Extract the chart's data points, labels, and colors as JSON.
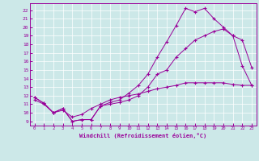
{
  "title": "",
  "xlabel": "Windchill (Refroidissement éolien,°C)",
  "ylabel": "",
  "bg_color": "#cce8e8",
  "line_color": "#990099",
  "xlim": [
    -0.5,
    23.5
  ],
  "ylim": [
    8.5,
    22.8
  ],
  "xticks": [
    0,
    1,
    2,
    3,
    4,
    5,
    6,
    7,
    8,
    9,
    10,
    11,
    12,
    13,
    14,
    15,
    16,
    17,
    18,
    19,
    20,
    21,
    22,
    23
  ],
  "yticks": [
    9,
    10,
    11,
    12,
    13,
    14,
    15,
    16,
    17,
    18,
    19,
    20,
    21,
    22
  ],
  "line1_x": [
    0,
    1,
    2,
    3,
    4,
    5,
    6,
    7,
    8,
    9,
    10,
    11,
    12,
    13,
    14,
    15,
    16,
    17,
    18,
    19,
    20,
    21,
    22,
    23
  ],
  "line1_y": [
    11.8,
    11.1,
    10.0,
    10.5,
    9.0,
    9.2,
    9.2,
    10.8,
    11.0,
    11.2,
    11.5,
    12.0,
    13.0,
    14.5,
    15.0,
    16.5,
    17.5,
    18.5,
    19.0,
    19.5,
    19.8,
    19.0,
    18.5,
    15.3
  ],
  "line2_x": [
    0,
    1,
    2,
    3,
    4,
    5,
    6,
    7,
    8,
    9,
    10,
    11,
    12,
    13,
    14,
    15,
    16,
    17,
    18,
    19,
    20,
    21,
    22,
    23
  ],
  "line2_y": [
    11.8,
    11.1,
    10.0,
    10.5,
    9.0,
    9.2,
    9.2,
    10.8,
    11.2,
    11.5,
    12.3,
    13.2,
    14.5,
    16.5,
    18.3,
    20.2,
    22.2,
    21.8,
    22.2,
    21.0,
    20.0,
    19.0,
    15.5,
    13.2
  ],
  "line3_x": [
    0,
    1,
    2,
    3,
    4,
    5,
    6,
    7,
    8,
    9,
    10,
    11,
    12,
    13,
    14,
    15,
    16,
    17,
    18,
    19,
    20,
    21,
    22,
    23
  ],
  "line3_y": [
    11.5,
    11.0,
    10.0,
    10.3,
    9.5,
    9.8,
    10.5,
    11.0,
    11.5,
    11.8,
    12.0,
    12.2,
    12.5,
    12.8,
    13.0,
    13.2,
    13.5,
    13.5,
    13.5,
    13.5,
    13.5,
    13.3,
    13.2,
    13.2
  ]
}
